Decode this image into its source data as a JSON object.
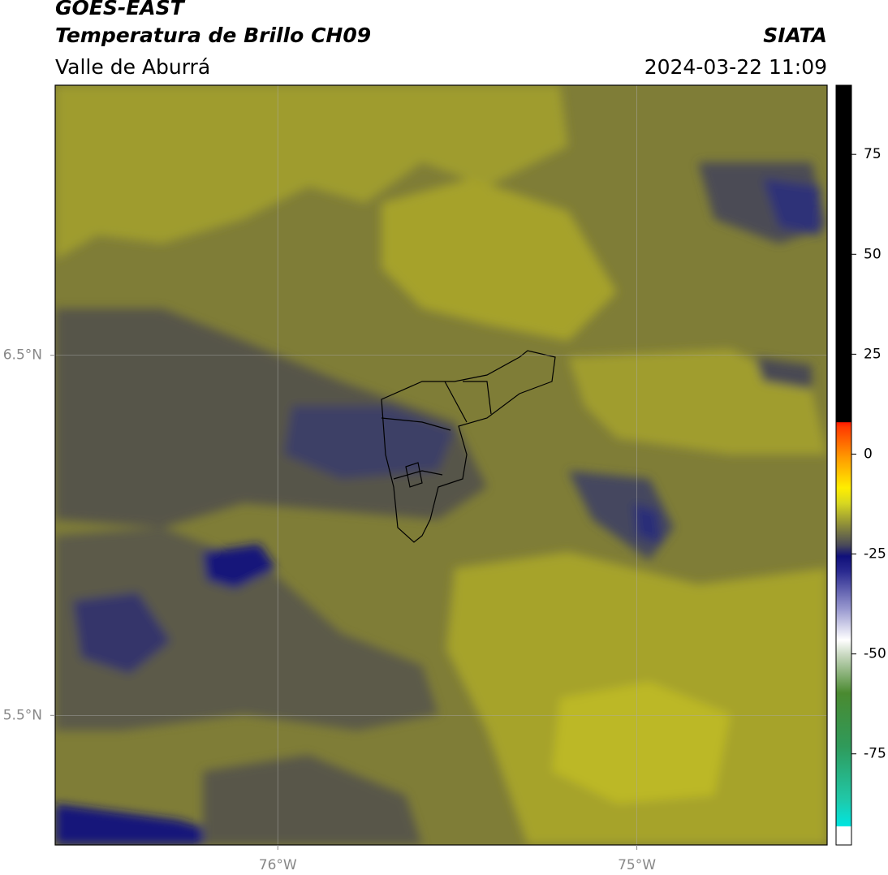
{
  "header": {
    "title": "GOES-EAST",
    "product": "Temperatura de Brillo CH09",
    "region": "Valle de Aburrá",
    "source": "SIATA",
    "datetime": "2024-03-22 11:09"
  },
  "map": {
    "xlim": [
      -76.62,
      -74.47
    ],
    "ylim": [
      5.14,
      7.25
    ],
    "xticks": [
      {
        "value": -76,
        "label": "76°W"
      },
      {
        "value": -75,
        "label": "75°W"
      }
    ],
    "yticks": [
      {
        "value": 6.5,
        "label": "6.5°N"
      },
      {
        "value": 5.5,
        "label": "5.5°N"
      }
    ]
  },
  "colorbar": {
    "range": [
      -97.8,
      92.3
    ],
    "ticks": [
      75,
      50,
      25,
      0,
      -25,
      -50,
      -75
    ]
  }
}
